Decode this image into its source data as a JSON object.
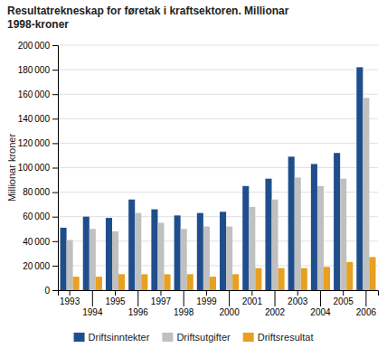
{
  "chart_data": {
    "type": "bar",
    "title": "Resultatrekneskap for føretak i kraftsektoren. Millionar\n1998-kroner",
    "ylabel": "Millionar kroner",
    "categories": [
      "1993",
      "1994",
      "1995",
      "1996",
      "1997",
      "1998",
      "1999",
      "2000",
      "2001",
      "2002",
      "2003",
      "2004",
      "2005",
      "2006"
    ],
    "series": [
      {
        "name": "Driftsinntekter",
        "color": "#1F4E8C",
        "values": [
          51000,
          60000,
          59000,
          74000,
          66000,
          61000,
          63000,
          64000,
          85000,
          91000,
          109000,
          103000,
          112000,
          182000
        ]
      },
      {
        "name": "Driftsutgifter",
        "color": "#C0C0C0",
        "values": [
          41000,
          50000,
          48000,
          63000,
          55000,
          50000,
          52000,
          52000,
          68000,
          74000,
          92000,
          85000,
          91000,
          157000
        ]
      },
      {
        "name": "Driftsresultat",
        "color": "#E8A020",
        "values": [
          11000,
          11000,
          13000,
          13000,
          13000,
          13000,
          11000,
          13000,
          18000,
          18000,
          18000,
          19000,
          23000,
          27000
        ]
      }
    ],
    "ylim": [
      0,
      200000
    ],
    "yticks": [
      0,
      {
        "value": 20000,
        "label": "20 000"
      },
      {
        "value": 40000,
        "label": "40 000"
      },
      {
        "value": 60000,
        "label": "60 000"
      },
      {
        "value": 80000,
        "label": "80 000"
      },
      {
        "value": 100000,
        "label": "100 000"
      },
      {
        "value": 120000,
        "label": "120 000"
      },
      {
        "value": 140000,
        "label": "140 000"
      },
      {
        "value": 160000,
        "label": "160 000"
      },
      {
        "value": 180000,
        "label": "180 000"
      },
      {
        "value": 200000,
        "label": "200 000"
      }
    ],
    "grid": true,
    "legend": "bottom"
  }
}
